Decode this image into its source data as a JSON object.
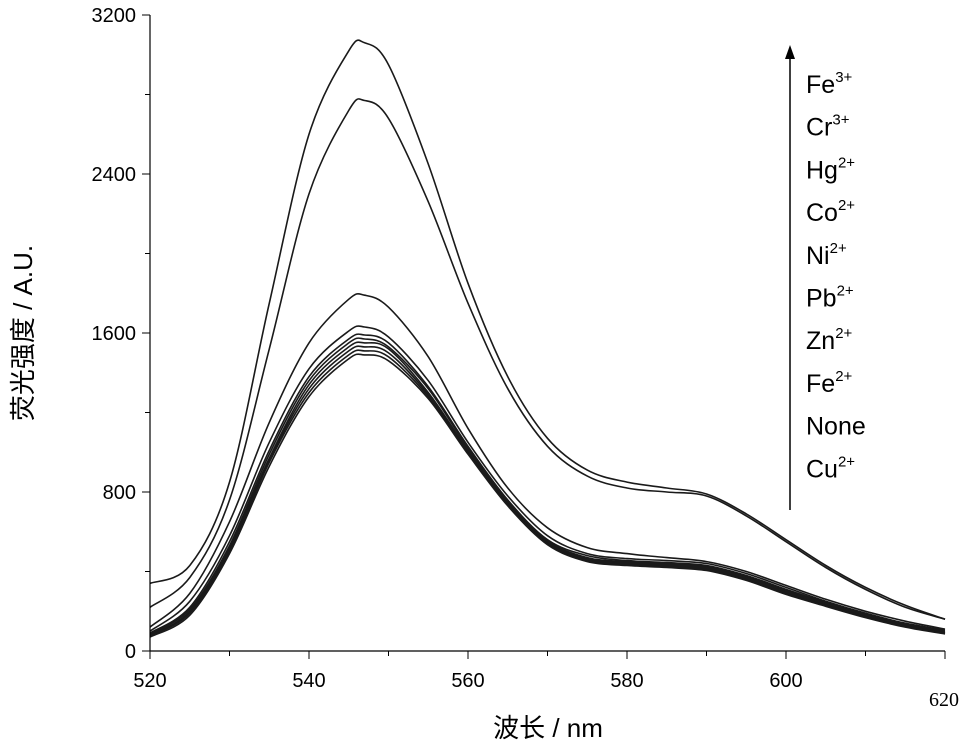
{
  "chart_data": {
    "type": "line",
    "xlabel": "波长  / nm",
    "ylabel": "荧光强度 / A.U.",
    "xlim": [
      520,
      620
    ],
    "ylim": [
      0,
      3200
    ],
    "x_ticks": [
      520,
      540,
      560,
      580,
      600
    ],
    "x_last_tick_label": "620",
    "y_ticks": [
      0,
      800,
      1600,
      2400,
      3200
    ],
    "grid": false,
    "legend_placement": "top-right",
    "legend_arrow": "up",
    "legend": [
      {
        "base": "Fe",
        "sup": "3+"
      },
      {
        "base": "Cr",
        "sup": "3+"
      },
      {
        "base": "Hg",
        "sup": "2+"
      },
      {
        "base": "Co",
        "sup": "2+"
      },
      {
        "base": "Ni",
        "sup": "2+"
      },
      {
        "base": "Pb",
        "sup": "2+"
      },
      {
        "base": "Zn",
        "sup": "2+"
      },
      {
        "base": "Fe",
        "sup": "2+"
      },
      {
        "base": "None",
        "sup": ""
      },
      {
        "base": "Cu",
        "sup": "2+"
      }
    ],
    "x": [
      520,
      525,
      530,
      535,
      540,
      545,
      547,
      550,
      555,
      560,
      565,
      570,
      575,
      580,
      585,
      590,
      595,
      600,
      605,
      610,
      615,
      620
    ],
    "series": [
      {
        "values": [
          340,
          430,
          850,
          1750,
          2600,
          3020,
          3060,
          2950,
          2450,
          1850,
          1380,
          1070,
          910,
          850,
          820,
          790,
          690,
          560,
          430,
          320,
          230,
          160
        ]
      },
      {
        "values": [
          220,
          370,
          760,
          1520,
          2300,
          2720,
          2770,
          2680,
          2260,
          1750,
          1320,
          1030,
          880,
          820,
          800,
          780,
          680,
          550,
          420,
          310,
          220,
          160
        ]
      },
      {
        "values": [
          120,
          290,
          650,
          1150,
          1550,
          1770,
          1790,
          1730,
          1480,
          1120,
          820,
          620,
          520,
          490,
          470,
          450,
          400,
          330,
          260,
          200,
          150,
          110
        ]
      },
      {
        "values": [
          100,
          250,
          580,
          1050,
          1420,
          1610,
          1630,
          1580,
          1360,
          1050,
          780,
          580,
          490,
          465,
          455,
          440,
          390,
          320,
          250,
          190,
          140,
          105
        ]
      },
      {
        "values": [
          90,
          220,
          550,
          1010,
          1380,
          1570,
          1590,
          1550,
          1330,
          1030,
          760,
          560,
          480,
          455,
          445,
          430,
          380,
          310,
          245,
          185,
          135,
          100
        ]
      },
      {
        "values": [
          85,
          210,
          530,
          990,
          1360,
          1550,
          1570,
          1530,
          1320,
          1020,
          750,
          555,
          470,
          450,
          440,
          425,
          375,
          305,
          240,
          180,
          130,
          95
        ]
      },
      {
        "values": [
          80,
          200,
          520,
          970,
          1340,
          1530,
          1550,
          1520,
          1300,
          1010,
          745,
          550,
          465,
          445,
          435,
          420,
          370,
          300,
          235,
          175,
          128,
          92
        ]
      },
      {
        "values": [
          78,
          195,
          510,
          960,
          1320,
          1510,
          1530,
          1500,
          1290,
          1000,
          740,
          545,
          460,
          440,
          430,
          415,
          365,
          295,
          230,
          172,
          125,
          90
        ]
      },
      {
        "values": [
          75,
          190,
          500,
          950,
          1300,
          1490,
          1510,
          1480,
          1280,
          995,
          735,
          540,
          455,
          435,
          425,
          410,
          360,
          290,
          228,
          170,
          123,
          88
        ]
      },
      {
        "values": [
          70,
          180,
          490,
          930,
          1280,
          1470,
          1490,
          1460,
          1270,
          990,
          730,
          535,
          450,
          430,
          420,
          405,
          355,
          285,
          225,
          168,
          120,
          86
        ]
      }
    ]
  }
}
